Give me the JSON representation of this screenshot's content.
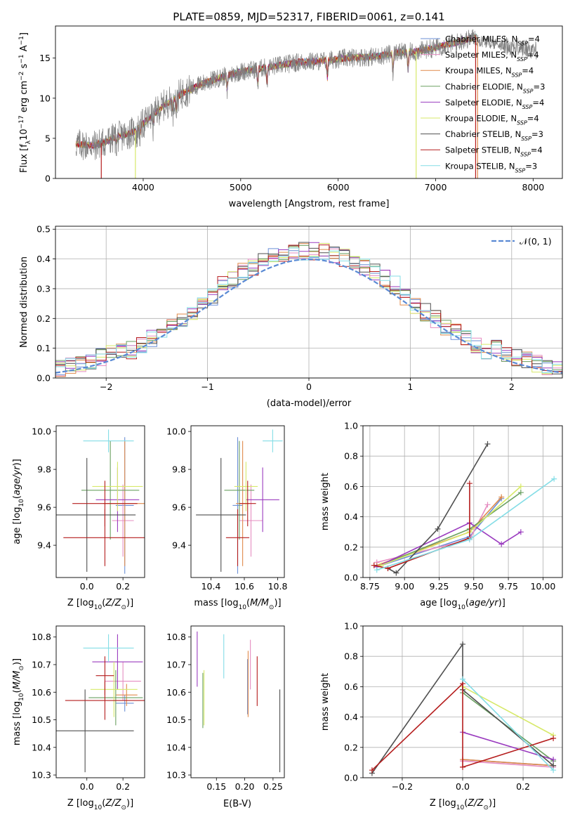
{
  "title": "PLATE=0859, MJD=52317, FIBERID=0061, z=0.141",
  "colors": {
    "Chabrier MILES": "#6b8fd6",
    "Salpeter MILES": "#e58cc1",
    "Kroupa MILES": "#e08a4a",
    "Chabrier ELODIE": "#6aa060",
    "Salpeter ELODIE": "#9a3bbf",
    "Kroupa ELODIE": "#d7e96a",
    "Chabrier STELIB": "#4f4f4f",
    "Salpeter STELIB": "#b51d1d",
    "Kroupa STELIB": "#84dde6",
    "gaussian": "#5a8ad4",
    "data": "#808080"
  },
  "chart_data": [
    {
      "id": "spectrum",
      "type": "line",
      "xlabel": "wavelength [Angstrom, rest frame]",
      "ylabel": "Flux [f_λ10^-17 erg cm^-2 s^-1 A^-1]",
      "xlim": [
        3100,
        8300
      ],
      "ylim": [
        0,
        19
      ],
      "xticks": [
        4000,
        5000,
        6000,
        7000,
        8000
      ],
      "yticks": [
        0,
        5,
        10,
        15
      ],
      "grid": false,
      "legend_position": "top-right",
      "series": [
        {
          "name": "Chabrier MILES, N_SSP=4"
        },
        {
          "name": "Salpeter MILES, N_SSP=4"
        },
        {
          "name": "Kroupa MILES, N_SSP=4"
        },
        {
          "name": "Chabrier ELODIE, N_SSP=3"
        },
        {
          "name": "Salpeter ELODIE, N_SSP=4"
        },
        {
          "name": "Kroupa ELODIE, N_SSP=4"
        },
        {
          "name": "Chabrier STELIB, N_SSP=3"
        },
        {
          "name": "Salpeter STELIB, N_SSP=4"
        },
        {
          "name": "Kroupa STELIB, N_SSP=3"
        }
      ],
      "continuum": {
        "x": [
          3300,
          3500,
          3700,
          3900,
          4000,
          4200,
          4400,
          4600,
          4800,
          5000,
          5200,
          5400,
          5600,
          5800,
          6000,
          6200,
          6400,
          6600,
          6800,
          7000,
          7200,
          7400
        ],
        "y": [
          4.3,
          4.1,
          5.0,
          5.8,
          6.8,
          9.0,
          10.6,
          11.8,
          12.6,
          13.3,
          13.7,
          14.1,
          14.5,
          14.6,
          14.9,
          15.1,
          15.2,
          15.7,
          15.8,
          16.3,
          16.9,
          17.6
        ]
      }
    },
    {
      "id": "residuals",
      "type": "line",
      "xlabel": "(data-model)/error",
      "ylabel": "Normed distribution",
      "xlim": [
        -2.5,
        2.5
      ],
      "ylim": [
        0,
        0.51
      ],
      "xticks": [
        -2,
        -1,
        0,
        1,
        2
      ],
      "yticks": [
        0.0,
        0.1,
        0.2,
        0.3,
        0.4,
        0.5
      ],
      "grid": true,
      "legend_position": "top-right",
      "legend_label": "N(0,1)",
      "gaussian": {
        "mean": 0,
        "sigma": 1
      },
      "bin_width": 0.1
    },
    {
      "id": "age_vs_Z",
      "type": "scatter",
      "xlabel": "Z [log10(Z/Z⊙)]",
      "ylabel": "age  [log10(age/yr)]",
      "xlim": [
        -0.17,
        0.32
      ],
      "ylim": [
        9.23,
        10.03
      ],
      "xticks": [
        0.0,
        0.2
      ],
      "yticks": [
        9.4,
        9.6,
        9.8,
        10.0
      ],
      "points": [
        {
          "model": "Chabrier MILES",
          "x": 0.21,
          "xerr": 0.05,
          "y": 9.61,
          "yerr": 0.36
        },
        {
          "model": "Salpeter MILES",
          "x": 0.2,
          "xerr": 0.06,
          "y": 9.53,
          "yerr": 0.19
        },
        {
          "model": "Kroupa MILES",
          "x": 0.21,
          "xerr": 0.12,
          "y": 9.62,
          "yerr": 0.33
        },
        {
          "model": "Chabrier ELODIE",
          "x": 0.13,
          "xerr": 0.16,
          "y": 9.69,
          "yerr": 0.26
        },
        {
          "model": "Salpeter ELODIE",
          "x": 0.17,
          "xerr": 0.12,
          "y": 9.64,
          "yerr": 0.17
        },
        {
          "model": "Kroupa ELODIE",
          "x": 0.17,
          "xerr": 0.14,
          "y": 9.71,
          "yerr": 0.13
        },
        {
          "model": "Chabrier STELIB",
          "x": 0.0,
          "xerr": 0.27,
          "y": 9.56,
          "yerr": 0.3
        },
        {
          "model": "Salpeter STELIB",
          "x": 0.1,
          "xerr": 0.23,
          "y": 9.44,
          "yerr": 0.15
        },
        {
          "model": "Salpeter STELIB",
          "x": 0.1,
          "xerr": 0.18,
          "y": 9.62,
          "yerr": 0.12
        },
        {
          "model": "Kroupa STELIB",
          "x": 0.12,
          "xerr": 0.14,
          "y": 9.95,
          "yerr": 0.06
        }
      ]
    },
    {
      "id": "age_vs_mass",
      "type": "scatter",
      "xlabel": "mass [log10(M/M⊙)]",
      "ylabel": "",
      "xlim": [
        10.28,
        10.84
      ],
      "ylim": [
        9.23,
        10.03
      ],
      "xticks": [
        10.4,
        10.6,
        10.8
      ],
      "yticks": [
        9.4,
        9.6,
        9.8,
        10.0
      ],
      "points": [
        {
          "model": "Chabrier MILES",
          "x": 10.56,
          "xerr": 0.03,
          "y": 9.61,
          "yerr": 0.36
        },
        {
          "model": "Salpeter MILES",
          "x": 10.64,
          "xerr": 0.07,
          "y": 9.53,
          "yerr": 0.19
        },
        {
          "model": "Kroupa MILES",
          "x": 10.59,
          "xerr": 0.04,
          "y": 9.62,
          "yerr": 0.33
        },
        {
          "model": "Chabrier ELODIE",
          "x": 10.57,
          "xerr": 0.09,
          "y": 9.69,
          "yerr": 0.26
        },
        {
          "model": "Salpeter ELODIE",
          "x": 10.71,
          "xerr": 0.1,
          "y": 9.64,
          "yerr": 0.17
        },
        {
          "model": "Kroupa ELODIE",
          "x": 10.61,
          "xerr": 0.07,
          "y": 9.71,
          "yerr": 0.13
        },
        {
          "model": "Chabrier STELIB",
          "x": 10.46,
          "xerr": 0.15,
          "y": 9.56,
          "yerr": 0.3
        },
        {
          "model": "Salpeter STELIB",
          "x": 10.56,
          "xerr": 0.07,
          "y": 9.44,
          "yerr": 0.15
        },
        {
          "model": "Salpeter STELIB",
          "x": 10.62,
          "xerr": 0.05,
          "y": 9.62,
          "yerr": 0.12
        },
        {
          "model": "Kroupa STELIB",
          "x": 10.77,
          "xerr": 0.06,
          "y": 9.95,
          "yerr": 0.06
        }
      ]
    },
    {
      "id": "weight_vs_age",
      "type": "line",
      "xlabel": "age  [log10(age/yr)]",
      "ylabel": "mass weight",
      "xlim": [
        8.7,
        10.14
      ],
      "ylim": [
        0,
        1.0
      ],
      "xticks": [
        8.75,
        9.0,
        9.25,
        9.5,
        9.75,
        10.0
      ],
      "yticks": [
        0.0,
        0.2,
        0.4,
        0.6,
        0.8,
        1.0
      ],
      "grid": true,
      "series": [
        {
          "model": "Chabrier MILES",
          "x": [
            8.8,
            9.47,
            9.7
          ],
          "y": [
            0.07,
            0.27,
            0.52
          ]
        },
        {
          "model": "Salpeter MILES",
          "x": [
            8.8,
            9.47,
            9.6
          ],
          "y": [
            0.1,
            0.25,
            0.48
          ]
        },
        {
          "model": "Kroupa MILES",
          "x": [
            8.8,
            9.47,
            9.7
          ],
          "y": [
            0.08,
            0.3,
            0.53
          ]
        },
        {
          "model": "Chabrier ELODIE",
          "x": [
            8.8,
            9.47,
            9.84
          ],
          "y": [
            0.07,
            0.32,
            0.56
          ]
        },
        {
          "model": "Salpeter ELODIE",
          "x": [
            8.8,
            9.47,
            9.7,
            9.84
          ],
          "y": [
            0.07,
            0.36,
            0.22,
            0.3
          ]
        },
        {
          "model": "Kroupa ELODIE",
          "x": [
            8.83,
            9.47,
            9.84
          ],
          "y": [
            0.08,
            0.3,
            0.6
          ]
        },
        {
          "model": "Chabrier STELIB",
          "x": [
            8.88,
            8.94,
            9.24,
            9.6
          ],
          "y": [
            0.06,
            0.03,
            0.32,
            0.88
          ]
        },
        {
          "model": "Salpeter STELIB",
          "x": [
            8.78,
            8.88,
            9.47,
            9.47
          ],
          "y": [
            0.08,
            0.06,
            0.26,
            0.62
          ]
        },
        {
          "model": "Kroupa STELIB",
          "x": [
            8.8,
            9.47,
            10.08
          ],
          "y": [
            0.05,
            0.25,
            0.65
          ]
        }
      ]
    },
    {
      "id": "mass_vs_Z",
      "type": "scatter",
      "xlabel": "Z [log10(Z/Z⊙)]",
      "ylabel": "mass [log10(M/M⊙)]",
      "xlim": [
        -0.17,
        0.32
      ],
      "ylim": [
        10.29,
        10.84
      ],
      "xticks": [
        0.0,
        0.2
      ],
      "yticks": [
        10.3,
        10.4,
        10.5,
        10.6,
        10.7,
        10.8
      ],
      "points": [
        {
          "model": "Chabrier MILES",
          "x": 0.21,
          "xerr": 0.05,
          "y": 10.56,
          "yerr": 0.03
        },
        {
          "model": "Salpeter MILES",
          "x": 0.2,
          "xerr": 0.1,
          "y": 10.64,
          "yerr": 0.07
        },
        {
          "model": "Kroupa MILES",
          "x": 0.22,
          "xerr": 0.06,
          "y": 10.59,
          "yerr": 0.04
        },
        {
          "model": "Chabrier ELODIE",
          "x": 0.16,
          "xerr": 0.15,
          "y": 10.58,
          "yerr": 0.1
        },
        {
          "model": "Salpeter ELODIE",
          "x": 0.17,
          "xerr": 0.14,
          "y": 10.71,
          "yerr": 0.1
        },
        {
          "model": "Kroupa ELODIE",
          "x": 0.15,
          "xerr": 0.13,
          "y": 10.61,
          "yerr": 0.1
        },
        {
          "model": "Chabrier STELIB",
          "x": -0.01,
          "xerr": 0.27,
          "y": 10.46,
          "yerr": 0.15
        },
        {
          "model": "Salpeter STELIB",
          "x": 0.1,
          "xerr": 0.22,
          "y": 10.57,
          "yerr": 0.07
        },
        {
          "model": "Salpeter STELIB",
          "x": 0.1,
          "xerr": 0.05,
          "y": 10.66,
          "yerr": 0.07
        },
        {
          "model": "Kroupa STELIB",
          "x": 0.12,
          "xerr": 0.14,
          "y": 10.76,
          "yerr": 0.05
        }
      ]
    },
    {
      "id": "mass_vs_ebv",
      "type": "scatter",
      "xlabel": "E(B-V)",
      "ylabel": "",
      "xlim": [
        0.105,
        0.27
      ],
      "ylim": [
        10.29,
        10.84
      ],
      "xticks": [
        0.15,
        0.2,
        0.25
      ],
      "yticks": [
        10.3,
        10.4,
        10.5,
        10.6,
        10.7,
        10.8
      ],
      "points": [
        {
          "model": "Chabrier MILES",
          "x": 0.205,
          "y": 10.62,
          "yerr": 0.1
        },
        {
          "model": "Salpeter MILES",
          "x": 0.21,
          "y": 10.7,
          "yerr": 0.09
        },
        {
          "model": "Kroupa MILES",
          "x": 0.206,
          "y": 10.63,
          "yerr": 0.12
        },
        {
          "model": "Chabrier ELODIE",
          "x": 0.126,
          "y": 10.57,
          "yerr": 0.1
        },
        {
          "model": "Salpeter ELODIE",
          "x": 0.116,
          "y": 10.72,
          "yerr": 0.1
        },
        {
          "model": "Kroupa ELODIE",
          "x": 0.128,
          "y": 10.58,
          "yerr": 0.1
        },
        {
          "model": "Chabrier STELIB",
          "x": 0.262,
          "y": 10.46,
          "yerr": 0.15
        },
        {
          "model": "Salpeter STELIB",
          "x": 0.222,
          "y": 10.64,
          "yerr": 0.09
        },
        {
          "model": "Kroupa STELIB",
          "x": 0.163,
          "y": 10.73,
          "yerr": 0.08
        }
      ]
    },
    {
      "id": "weight_vs_Z",
      "type": "line",
      "xlabel": "Z [log10(Z/Z⊙)]",
      "ylabel": "mass weight",
      "xlim": [
        -0.33,
        0.33
      ],
      "ylim": [
        0,
        1.0
      ],
      "xticks": [
        -0.2,
        0.0,
        0.2
      ],
      "yticks": [
        0.0,
        0.2,
        0.4,
        0.6,
        0.8,
        1.0
      ],
      "grid": true,
      "series": [
        {
          "model": "Chabrier MILES",
          "x": [
            0.0,
            0.3
          ],
          "y": [
            0.12,
            0.08
          ]
        },
        {
          "model": "Salpeter MILES",
          "x": [
            0.0,
            0.3
          ],
          "y": [
            0.11,
            0.07
          ]
        },
        {
          "model": "Kroupa MILES",
          "x": [
            0.0,
            0.3
          ],
          "y": [
            0.12,
            0.08
          ]
        },
        {
          "model": "Chabrier ELODIE",
          "x": [
            0.0,
            0.3
          ],
          "y": [
            0.56,
            0.11
          ]
        },
        {
          "model": "Salpeter ELODIE",
          "x": [
            0.0,
            0.3
          ],
          "y": [
            0.3,
            0.12
          ]
        },
        {
          "model": "Kroupa ELODIE",
          "x": [
            0.0,
            0.3
          ],
          "y": [
            0.6,
            0.28
          ]
        },
        {
          "model": "Chabrier STELIB",
          "x": [
            -0.3,
            0.0,
            0.0,
            0.3
          ],
          "y": [
            0.03,
            0.88,
            0.58,
            0.08
          ]
        },
        {
          "model": "Salpeter STELIB",
          "x": [
            -0.3,
            0.0,
            0.0,
            0.3
          ],
          "y": [
            0.05,
            0.62,
            0.07,
            0.26
          ]
        },
        {
          "model": "Kroupa STELIB",
          "x": [
            0.0,
            0.3
          ],
          "y": [
            0.65,
            0.05
          ]
        }
      ]
    }
  ]
}
